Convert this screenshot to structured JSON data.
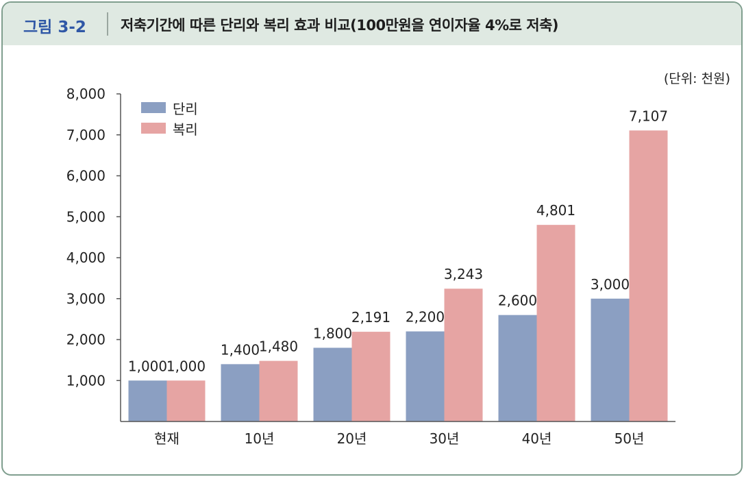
{
  "header": {
    "figure_label": "그림 3-2",
    "title": "저축기간에 따른 단리와 복리 효과 비교(100만원을 연이자율 4%로 저축)"
  },
  "unit_label": "(단위: 천원)",
  "colors": {
    "simple": "#8b9fc2",
    "compound": "#e6a4a3",
    "header_bg": "#dfe9e2",
    "label_blue": "#2f57a6"
  },
  "chart_data": {
    "type": "bar",
    "categories": [
      "현재",
      "10년",
      "20년",
      "30년",
      "40년",
      "50년"
    ],
    "series": [
      {
        "name": "단리",
        "values": [
          1000,
          1400,
          1800,
          2200,
          2600,
          3000
        ],
        "labels": [
          "1,000",
          "1,400",
          "1,800",
          "2,200",
          "2,600",
          "3,000"
        ]
      },
      {
        "name": "복리",
        "values": [
          1000,
          1480,
          2191,
          3243,
          4801,
          7107
        ],
        "labels": [
          "1,000",
          "1,480",
          "2,191",
          "3,243",
          "4,801",
          "7,107"
        ]
      }
    ],
    "ylim": [
      0,
      8000
    ],
    "yticks": [
      1000,
      2000,
      3000,
      4000,
      5000,
      6000,
      7000,
      8000
    ],
    "ytick_labels": [
      "1,000",
      "2,000",
      "3,000",
      "4,000",
      "5,000",
      "6,000",
      "7,000",
      "8,000"
    ],
    "legend": "top-left",
    "grid": false
  }
}
